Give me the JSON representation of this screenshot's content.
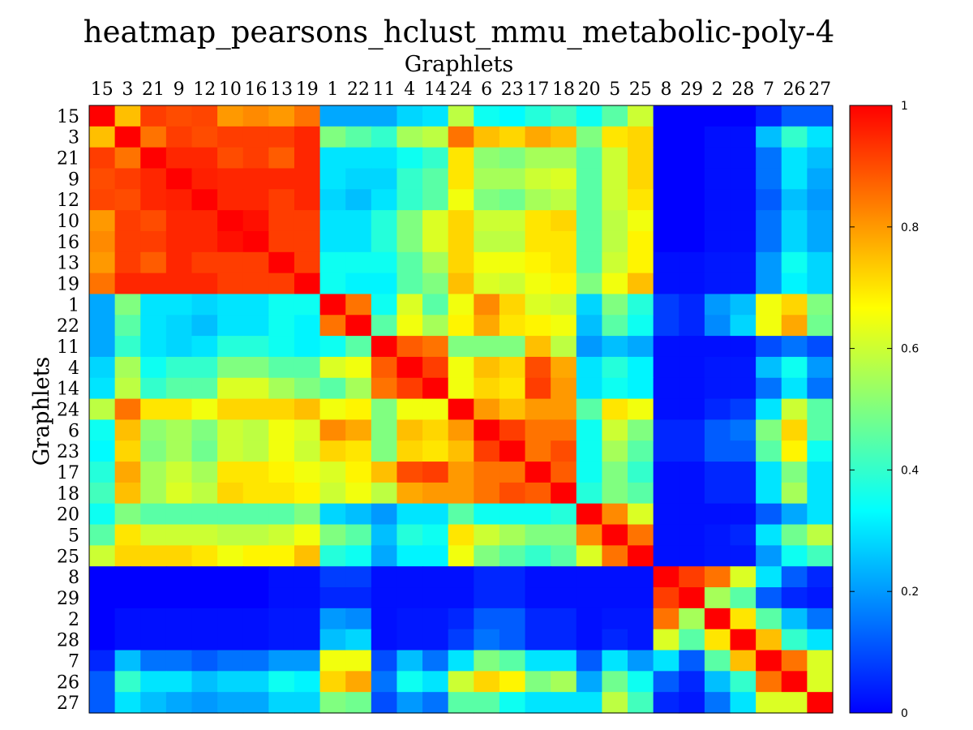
{
  "chart_data": {
    "type": "heatmap",
    "title": "heatmap_pearsons_hclust_mmu_metabolic-poly-4",
    "xlabel": "Graphlets",
    "ylabel": "Graphlets",
    "labels": [
      "15",
      "3",
      "21",
      "9",
      "12",
      "10",
      "16",
      "13",
      "19",
      "1",
      "22",
      "11",
      "4",
      "14",
      "24",
      "6",
      "23",
      "17",
      "18",
      "20",
      "5",
      "25",
      "8",
      "29",
      "2",
      "28",
      "7",
      "26",
      "27"
    ],
    "colorbar": {
      "min": 0,
      "max": 1,
      "ticks": [
        "1",
        "0.8",
        "0.6",
        "0.4",
        "0.2",
        "0"
      ],
      "tick_values": [
        1,
        0.8,
        0.6,
        0.4,
        0.2,
        0
      ]
    },
    "colormap": [
      "#0000ff",
      "#00ffff",
      "#ffff00",
      "#ff0000"
    ],
    "grid": false,
    "legend": "right",
    "values": [
      [
        1.0,
        0.75,
        0.92,
        0.9,
        0.91,
        0.8,
        0.82,
        0.8,
        0.85,
        0.22,
        0.22,
        0.22,
        0.28,
        0.3,
        0.58,
        0.35,
        0.33,
        0.38,
        0.42,
        0.35,
        0.45,
        0.6,
        0.0,
        0.0,
        0.0,
        0.0,
        0.05,
        0.12,
        0.12
      ],
      [
        0.75,
        1.0,
        0.85,
        0.92,
        0.9,
        0.92,
        0.92,
        0.92,
        0.95,
        0.5,
        0.45,
        0.4,
        0.55,
        0.58,
        0.85,
        0.75,
        0.72,
        0.78,
        0.75,
        0.5,
        0.7,
        0.72,
        0.0,
        0.0,
        0.02,
        0.02,
        0.25,
        0.4,
        0.3
      ],
      [
        0.92,
        0.85,
        1.0,
        0.95,
        0.95,
        0.9,
        0.92,
        0.88,
        0.95,
        0.3,
        0.3,
        0.3,
        0.35,
        0.4,
        0.7,
        0.52,
        0.5,
        0.55,
        0.55,
        0.45,
        0.6,
        0.72,
        0.0,
        0.0,
        0.02,
        0.02,
        0.15,
        0.3,
        0.25
      ],
      [
        0.9,
        0.92,
        0.95,
        1.0,
        0.96,
        0.95,
        0.95,
        0.95,
        0.95,
        0.3,
        0.28,
        0.28,
        0.4,
        0.45,
        0.7,
        0.55,
        0.55,
        0.6,
        0.62,
        0.45,
        0.6,
        0.72,
        0.0,
        0.0,
        0.02,
        0.02,
        0.15,
        0.3,
        0.22
      ],
      [
        0.91,
        0.9,
        0.95,
        0.96,
        1.0,
        0.95,
        0.95,
        0.92,
        0.95,
        0.28,
        0.25,
        0.3,
        0.4,
        0.45,
        0.65,
        0.5,
        0.48,
        0.55,
        0.58,
        0.45,
        0.6,
        0.7,
        0.0,
        0.0,
        0.02,
        0.02,
        0.12,
        0.25,
        0.2
      ],
      [
        0.8,
        0.92,
        0.9,
        0.95,
        0.95,
        1.0,
        0.98,
        0.92,
        0.92,
        0.3,
        0.3,
        0.38,
        0.5,
        0.62,
        0.72,
        0.6,
        0.6,
        0.7,
        0.72,
        0.45,
        0.58,
        0.65,
        0.0,
        0.0,
        0.02,
        0.02,
        0.15,
        0.28,
        0.22
      ],
      [
        0.82,
        0.92,
        0.92,
        0.95,
        0.95,
        0.98,
        1.0,
        0.92,
        0.92,
        0.3,
        0.3,
        0.38,
        0.5,
        0.62,
        0.72,
        0.58,
        0.58,
        0.7,
        0.7,
        0.45,
        0.58,
        0.68,
        0.0,
        0.0,
        0.02,
        0.02,
        0.15,
        0.28,
        0.22
      ],
      [
        0.8,
        0.92,
        0.88,
        0.95,
        0.92,
        0.92,
        0.92,
        1.0,
        0.92,
        0.35,
        0.35,
        0.35,
        0.45,
        0.55,
        0.72,
        0.65,
        0.65,
        0.68,
        0.7,
        0.45,
        0.6,
        0.68,
        0.02,
        0.02,
        0.03,
        0.03,
        0.2,
        0.35,
        0.28
      ],
      [
        0.85,
        0.95,
        0.95,
        0.95,
        0.95,
        0.92,
        0.92,
        0.92,
        1.0,
        0.35,
        0.32,
        0.32,
        0.45,
        0.5,
        0.75,
        0.62,
        0.6,
        0.65,
        0.68,
        0.5,
        0.65,
        0.75,
        0.02,
        0.02,
        0.03,
        0.03,
        0.2,
        0.32,
        0.28
      ],
      [
        0.22,
        0.5,
        0.3,
        0.3,
        0.28,
        0.3,
        0.3,
        0.35,
        0.35,
        1.0,
        0.85,
        0.35,
        0.62,
        0.45,
        0.65,
        0.82,
        0.72,
        0.62,
        0.6,
        0.28,
        0.5,
        0.38,
        0.08,
        0.05,
        0.2,
        0.25,
        0.65,
        0.72,
        0.5
      ],
      [
        0.22,
        0.45,
        0.3,
        0.28,
        0.25,
        0.3,
        0.3,
        0.35,
        0.32,
        0.85,
        1.0,
        0.45,
        0.65,
        0.55,
        0.68,
        0.78,
        0.7,
        0.68,
        0.65,
        0.25,
        0.45,
        0.35,
        0.08,
        0.05,
        0.18,
        0.28,
        0.65,
        0.78,
        0.48
      ],
      [
        0.22,
        0.4,
        0.3,
        0.28,
        0.3,
        0.38,
        0.38,
        0.35,
        0.32,
        0.35,
        0.45,
        1.0,
        0.88,
        0.85,
        0.5,
        0.5,
        0.5,
        0.75,
        0.58,
        0.2,
        0.25,
        0.22,
        0.02,
        0.02,
        0.02,
        0.02,
        0.1,
        0.15,
        0.1
      ],
      [
        0.28,
        0.55,
        0.35,
        0.4,
        0.4,
        0.5,
        0.5,
        0.45,
        0.45,
        0.62,
        0.65,
        0.88,
        1.0,
        0.92,
        0.65,
        0.75,
        0.72,
        0.9,
        0.78,
        0.3,
        0.38,
        0.32,
        0.02,
        0.02,
        0.03,
        0.03,
        0.25,
        0.35,
        0.2
      ],
      [
        0.3,
        0.58,
        0.4,
        0.45,
        0.45,
        0.62,
        0.62,
        0.55,
        0.5,
        0.45,
        0.55,
        0.85,
        0.92,
        1.0,
        0.65,
        0.72,
        0.7,
        0.92,
        0.8,
        0.3,
        0.35,
        0.32,
        0.02,
        0.02,
        0.03,
        0.03,
        0.15,
        0.3,
        0.15
      ],
      [
        0.58,
        0.85,
        0.7,
        0.7,
        0.65,
        0.72,
        0.72,
        0.72,
        0.75,
        0.65,
        0.68,
        0.5,
        0.65,
        0.65,
        1.0,
        0.8,
        0.75,
        0.8,
        0.8,
        0.45,
        0.7,
        0.65,
        0.02,
        0.02,
        0.05,
        0.08,
        0.3,
        0.6,
        0.45
      ],
      [
        0.35,
        0.75,
        0.52,
        0.55,
        0.5,
        0.6,
        0.58,
        0.65,
        0.62,
        0.82,
        0.78,
        0.5,
        0.75,
        0.72,
        0.8,
        1.0,
        0.92,
        0.85,
        0.85,
        0.35,
        0.6,
        0.5,
        0.05,
        0.05,
        0.12,
        0.15,
        0.5,
        0.72,
        0.45
      ],
      [
        0.33,
        0.72,
        0.5,
        0.55,
        0.48,
        0.6,
        0.58,
        0.65,
        0.6,
        0.72,
        0.7,
        0.5,
        0.72,
        0.7,
        0.75,
        0.92,
        1.0,
        0.85,
        0.9,
        0.35,
        0.55,
        0.45,
        0.05,
        0.05,
        0.12,
        0.12,
        0.45,
        0.68,
        0.35
      ],
      [
        0.38,
        0.78,
        0.55,
        0.6,
        0.55,
        0.7,
        0.7,
        0.68,
        0.65,
        0.62,
        0.68,
        0.75,
        0.9,
        0.92,
        0.8,
        0.85,
        0.85,
        1.0,
        0.88,
        0.35,
        0.5,
        0.4,
        0.02,
        0.02,
        0.05,
        0.05,
        0.3,
        0.5,
        0.3
      ],
      [
        0.42,
        0.75,
        0.55,
        0.62,
        0.58,
        0.72,
        0.7,
        0.7,
        0.68,
        0.6,
        0.65,
        0.58,
        0.78,
        0.8,
        0.8,
        0.85,
        0.9,
        0.88,
        1.0,
        0.38,
        0.5,
        0.45,
        0.02,
        0.02,
        0.05,
        0.05,
        0.3,
        0.55,
        0.3
      ],
      [
        0.35,
        0.5,
        0.45,
        0.45,
        0.45,
        0.45,
        0.45,
        0.45,
        0.5,
        0.28,
        0.25,
        0.2,
        0.3,
        0.3,
        0.45,
        0.35,
        0.35,
        0.35,
        0.38,
        1.0,
        0.82,
        0.62,
        0.02,
        0.02,
        0.02,
        0.02,
        0.12,
        0.22,
        0.3
      ],
      [
        0.45,
        0.7,
        0.6,
        0.6,
        0.6,
        0.58,
        0.58,
        0.6,
        0.65,
        0.5,
        0.45,
        0.25,
        0.38,
        0.35,
        0.7,
        0.6,
        0.55,
        0.5,
        0.5,
        0.82,
        1.0,
        0.85,
        0.02,
        0.02,
        0.03,
        0.05,
        0.3,
        0.48,
        0.58
      ],
      [
        0.6,
        0.72,
        0.72,
        0.72,
        0.7,
        0.65,
        0.68,
        0.68,
        0.75,
        0.38,
        0.35,
        0.22,
        0.32,
        0.32,
        0.65,
        0.5,
        0.45,
        0.4,
        0.45,
        0.62,
        0.85,
        1.0,
        0.02,
        0.02,
        0.03,
        0.03,
        0.2,
        0.35,
        0.42
      ],
      [
        0.0,
        0.0,
        0.0,
        0.0,
        0.0,
        0.0,
        0.0,
        0.02,
        0.02,
        0.08,
        0.08,
        0.02,
        0.02,
        0.02,
        0.02,
        0.05,
        0.05,
        0.02,
        0.02,
        0.02,
        0.02,
        0.02,
        1.0,
        0.92,
        0.85,
        0.62,
        0.3,
        0.12,
        0.05
      ],
      [
        0.0,
        0.0,
        0.0,
        0.0,
        0.0,
        0.0,
        0.0,
        0.02,
        0.02,
        0.05,
        0.05,
        0.02,
        0.02,
        0.02,
        0.02,
        0.05,
        0.05,
        0.02,
        0.02,
        0.02,
        0.02,
        0.02,
        0.92,
        1.0,
        0.55,
        0.45,
        0.12,
        0.05,
        0.03
      ],
      [
        0.0,
        0.02,
        0.02,
        0.02,
        0.02,
        0.02,
        0.02,
        0.03,
        0.03,
        0.2,
        0.18,
        0.02,
        0.03,
        0.03,
        0.05,
        0.12,
        0.12,
        0.05,
        0.05,
        0.02,
        0.03,
        0.03,
        0.85,
        0.55,
        1.0,
        0.7,
        0.45,
        0.25,
        0.15
      ],
      [
        0.0,
        0.02,
        0.02,
        0.02,
        0.02,
        0.02,
        0.02,
        0.03,
        0.03,
        0.25,
        0.28,
        0.02,
        0.03,
        0.03,
        0.08,
        0.15,
        0.12,
        0.05,
        0.05,
        0.02,
        0.05,
        0.03,
        0.62,
        0.45,
        0.7,
        1.0,
        0.75,
        0.4,
        0.3
      ],
      [
        0.05,
        0.25,
        0.15,
        0.15,
        0.12,
        0.15,
        0.15,
        0.2,
        0.2,
        0.65,
        0.65,
        0.1,
        0.25,
        0.15,
        0.3,
        0.5,
        0.45,
        0.3,
        0.3,
        0.12,
        0.3,
        0.2,
        0.3,
        0.12,
        0.45,
        0.75,
        1.0,
        0.85,
        0.62
      ],
      [
        0.12,
        0.4,
        0.3,
        0.3,
        0.25,
        0.28,
        0.28,
        0.35,
        0.32,
        0.72,
        0.78,
        0.15,
        0.35,
        0.3,
        0.6,
        0.72,
        0.68,
        0.5,
        0.55,
        0.22,
        0.48,
        0.35,
        0.12,
        0.05,
        0.25,
        0.4,
        0.85,
        1.0,
        0.62
      ],
      [
        0.12,
        0.3,
        0.25,
        0.22,
        0.2,
        0.22,
        0.22,
        0.28,
        0.28,
        0.5,
        0.48,
        0.1,
        0.2,
        0.15,
        0.45,
        0.45,
        0.35,
        0.3,
        0.3,
        0.3,
        0.58,
        0.42,
        0.05,
        0.03,
        0.15,
        0.3,
        0.62,
        0.62,
        1.0
      ]
    ]
  }
}
